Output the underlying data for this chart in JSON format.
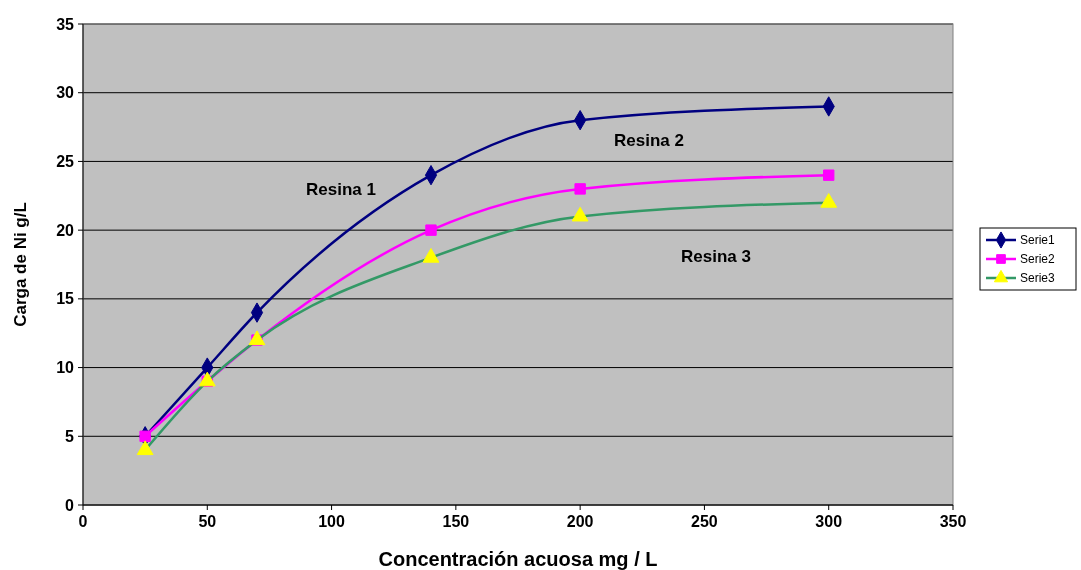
{
  "chart_data": {
    "type": "line",
    "xlabel": "Concentración acuosa mg / L",
    "ylabel": "Carga de Ni g/L",
    "xlim": [
      0,
      350
    ],
    "xticks": [
      0,
      50,
      100,
      150,
      200,
      250,
      300,
      350
    ],
    "ylim": [
      0,
      35
    ],
    "yticks": [
      0,
      5,
      10,
      15,
      20,
      25,
      30,
      35
    ],
    "grid": "y",
    "legend": "right",
    "series": [
      {
        "name": "Serie1",
        "color": "#000080",
        "marker": "diamond",
        "x": [
          25,
          50,
          70,
          140,
          200,
          300
        ],
        "values": [
          5,
          10,
          14,
          24,
          28,
          29
        ]
      },
      {
        "name": "Serie2",
        "color": "#ff00ff",
        "marker": "square",
        "x": [
          25,
          50,
          70,
          140,
          200,
          300
        ],
        "values": [
          5,
          9,
          12,
          20,
          23,
          24
        ]
      },
      {
        "name": "Serie3",
        "color": "#339966",
        "colors": [
          "#ffff00",
          "#ffff00",
          "#ffff00",
          "#ffff00",
          "#ffff00",
          "#ffff00"
        ],
        "marker": "triangle",
        "x": [
          25,
          50,
          70,
          140,
          200,
          300
        ],
        "values": [
          4,
          9,
          12,
          18,
          21,
          22
        ]
      }
    ],
    "annotations": [
      "Resina 1",
      "Resina 2",
      "Resina 3"
    ]
  }
}
